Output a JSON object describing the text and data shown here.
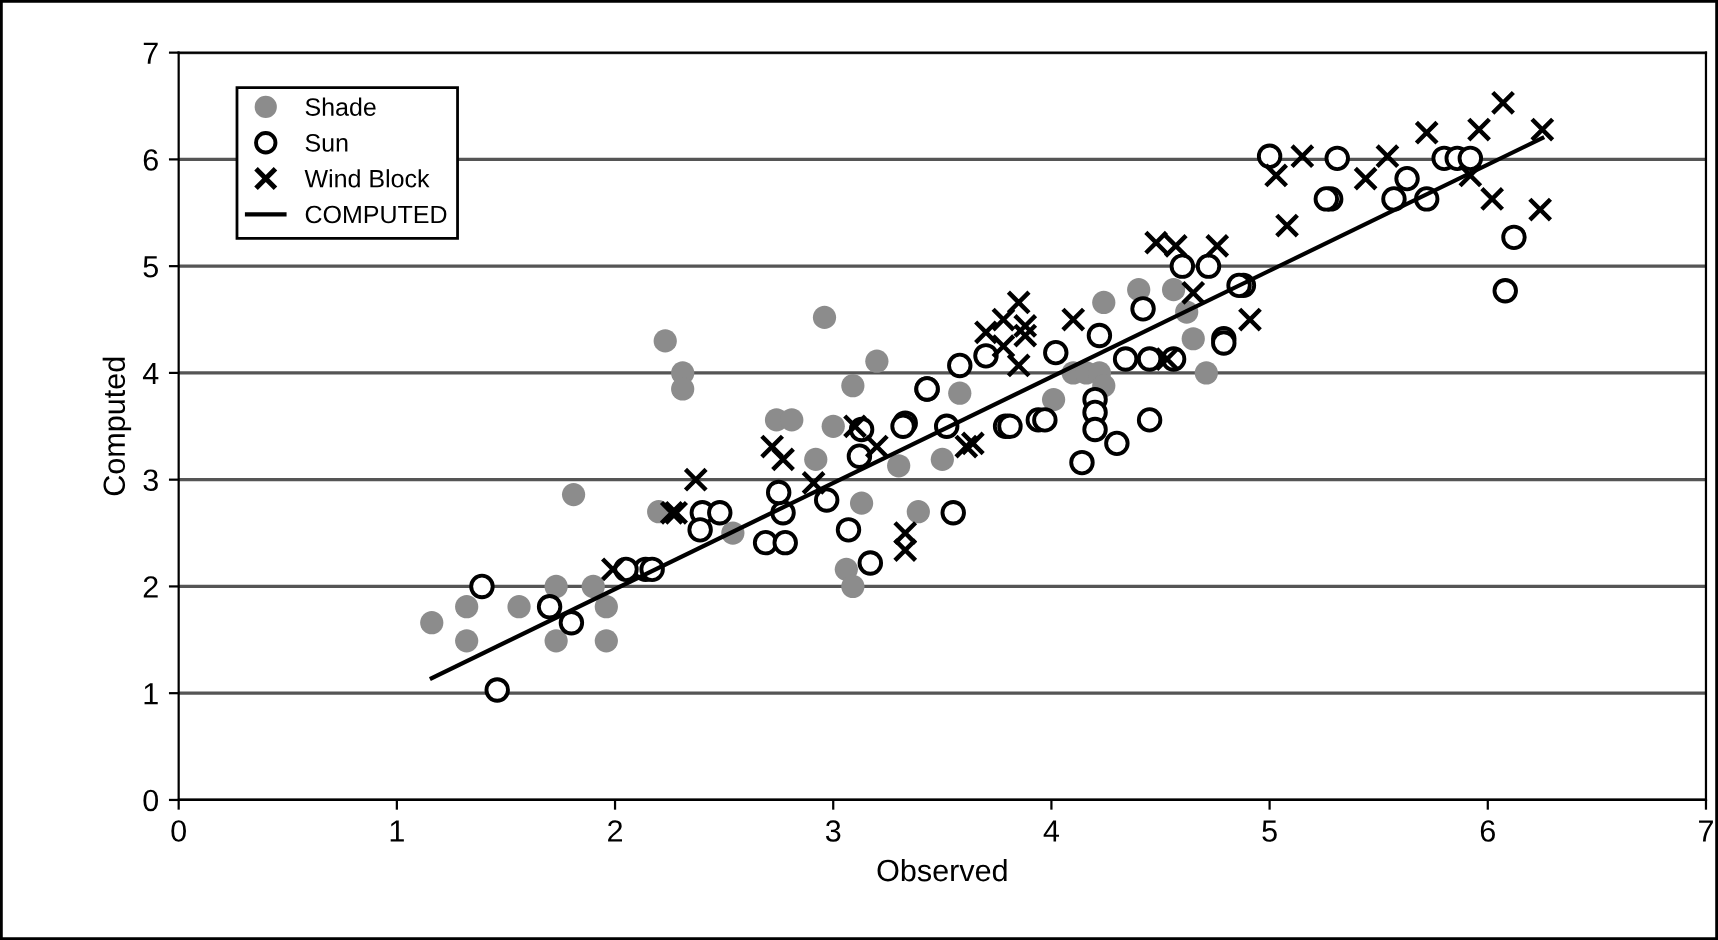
{
  "chart_data": {
    "type": "scatter",
    "xlabel": "Observed",
    "ylabel": "Computed",
    "xlim": [
      0,
      7
    ],
    "ylim": [
      0,
      7
    ],
    "xticks": [
      0,
      1,
      2,
      3,
      4,
      5,
      6,
      7
    ],
    "yticks": [
      0,
      1,
      2,
      3,
      4,
      5,
      6,
      7
    ],
    "grid": "y",
    "legend": "top left",
    "series": [
      {
        "name": "Shade",
        "color": "#8c8c8c",
        "marker": "circle",
        "x": [
          2.23,
          2.31,
          2.31,
          1.81,
          2.2,
          1.16,
          1.32,
          1.32,
          1.56,
          1.73,
          1.73,
          1.9,
          1.96,
          1.96,
          2.96,
          3.2,
          3.09,
          2.74,
          2.81,
          3.0,
          2.92,
          2.54,
          3.13,
          3.39,
          3.06,
          3.09,
          3.3,
          3.5,
          3.58,
          4.4,
          4.56,
          4.24,
          4.1,
          4.16,
          4.22,
          4.71,
          4.65,
          4.01,
          4.24,
          4.62
        ],
        "values": [
          4.3,
          4.0,
          3.85,
          2.86,
          2.7,
          1.66,
          1.81,
          1.49,
          1.81,
          2.0,
          1.49,
          2.0,
          1.81,
          1.49,
          4.52,
          4.11,
          3.88,
          3.56,
          3.56,
          3.5,
          3.19,
          2.5,
          2.78,
          2.7,
          2.16,
          2.0,
          3.13,
          3.19,
          3.81,
          4.78,
          4.78,
          4.66,
          4.0,
          4.0,
          4.0,
          4.0,
          4.32,
          3.75,
          3.88,
          4.57
        ]
      },
      {
        "name": "Sun",
        "color": "#000000",
        "marker": "open circle",
        "x": [
          1.39,
          1.46,
          1.8,
          1.7,
          2.14,
          2.69,
          2.78,
          2.77,
          2.75,
          2.97,
          2.4,
          2.48,
          2.39,
          2.05,
          2.17,
          3.07,
          3.17,
          3.55,
          3.12,
          3.13,
          3.33,
          3.43,
          3.52,
          3.79,
          3.94,
          3.58,
          3.7,
          3.81,
          3.97,
          4.14,
          4.3,
          4.45,
          4.2,
          4.2,
          4.2,
          4.02,
          4.22,
          4.34,
          4.45,
          4.56,
          4.42,
          4.6,
          4.72,
          4.88,
          4.79,
          3.43,
          3.32,
          5.28,
          5.0,
          5.31,
          5.26,
          5.57,
          5.63,
          5.72,
          5.8,
          5.86,
          5.92,
          6.12,
          6.08,
          4.79,
          4.86
        ],
        "values": [
          2.0,
          1.03,
          1.66,
          1.81,
          2.16,
          2.41,
          2.41,
          2.69,
          2.88,
          2.81,
          2.69,
          2.69,
          2.53,
          2.16,
          2.16,
          2.53,
          2.22,
          2.69,
          3.22,
          3.47,
          3.53,
          3.85,
          3.5,
          3.5,
          3.56,
          4.07,
          4.16,
          3.5,
          3.56,
          3.16,
          3.34,
          3.56,
          3.75,
          3.63,
          3.47,
          4.19,
          4.35,
          4.13,
          4.13,
          4.13,
          4.6,
          5.0,
          5.0,
          4.82,
          4.32,
          3.85,
          3.5,
          5.63,
          6.03,
          6.01,
          5.63,
          5.63,
          5.82,
          5.63,
          6.01,
          6.01,
          6.01,
          5.27,
          4.77,
          4.28,
          4.82
        ]
      },
      {
        "name": "Wind Block",
        "color": "#000000",
        "marker": "cross",
        "x": [
          1.99,
          2.26,
          2.37,
          2.28,
          2.72,
          2.77,
          2.91,
          3.1,
          3.2,
          3.33,
          3.33,
          3.64,
          3.7,
          3.78,
          3.85,
          3.88,
          3.78,
          3.88,
          4.1,
          4.48,
          4.57,
          4.76,
          4.65,
          4.91,
          5.08,
          3.61,
          3.85,
          4.53,
          5.03,
          5.15,
          5.44,
          5.54,
          5.72,
          5.96,
          6.07,
          6.25,
          5.92,
          6.02,
          6.24
        ],
        "values": [
          2.16,
          2.69,
          3.0,
          2.69,
          3.31,
          3.19,
          2.97,
          3.5,
          3.31,
          2.5,
          2.34,
          3.34,
          4.38,
          4.25,
          4.66,
          4.44,
          4.5,
          4.35,
          4.5,
          5.22,
          5.19,
          5.19,
          4.75,
          4.5,
          5.38,
          3.31,
          4.07,
          4.13,
          5.85,
          6.03,
          5.82,
          6.03,
          6.25,
          6.28,
          6.53,
          6.28,
          5.85,
          5.63,
          5.53
        ]
      },
      {
        "name": "COMPUTED",
        "type": "line",
        "color": "#000000",
        "line_style": "solid",
        "x": [
          1.16,
          6.25
        ],
        "values": [
          1.14,
          6.2
        ]
      }
    ]
  }
}
